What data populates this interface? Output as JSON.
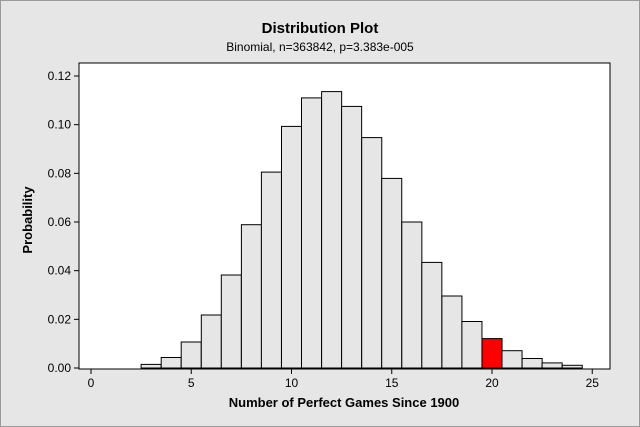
{
  "chart_data": {
    "type": "bar",
    "title": "Distribution Plot",
    "subtitle": "Binomial, n=363842, p=3.383e-005",
    "xlabel": "Number of Perfect Games Since 1900",
    "ylabel": "Probability",
    "xlim": [
      0,
      25
    ],
    "ylim": [
      0,
      0.12
    ],
    "xticks": [
      "0",
      "5",
      "10",
      "15",
      "20",
      "25"
    ],
    "yticks": [
      "0.00",
      "0.02",
      "0.04",
      "0.06",
      "0.08",
      "0.10",
      "0.12"
    ],
    "grid": false,
    "legend": "none",
    "x": [
      3,
      4,
      5,
      6,
      7,
      8,
      9,
      10,
      11,
      12,
      13,
      14,
      15,
      16,
      17,
      18,
      19,
      20,
      21,
      22,
      23,
      24
    ],
    "values": [
      0.0015,
      0.0043,
      0.0107,
      0.0218,
      0.0382,
      0.0589,
      0.0805,
      0.0993,
      0.111,
      0.1136,
      0.1075,
      0.0947,
      0.0779,
      0.06,
      0.0434,
      0.0296,
      0.0191,
      0.0121,
      0.0071,
      0.0039,
      0.0021,
      0.0011
    ],
    "highlight_x": 20,
    "colors": {
      "bar": "#e6e6e6",
      "highlight": "#ff0000",
      "plot_bg": "#ffffff",
      "frame_bg": "#e6e6e6"
    }
  }
}
